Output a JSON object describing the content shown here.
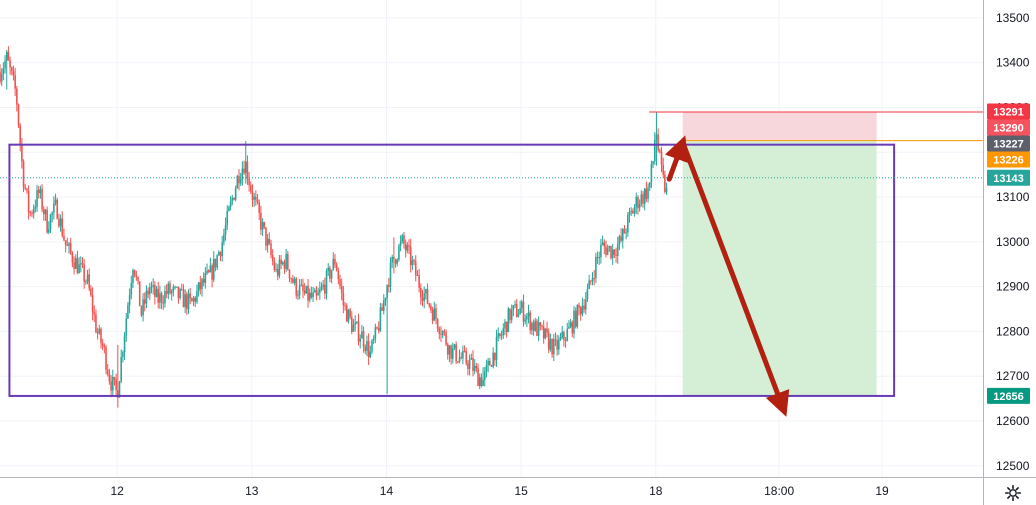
{
  "chart_data": {
    "type": "candlestick",
    "title": "",
    "xlabel": "",
    "ylabel": "",
    "ylim": [
      12475,
      13540
    ],
    "y_ticks": [
      12500,
      12600,
      12700,
      12800,
      12900,
      13000,
      13100,
      13200,
      13300,
      13400,
      13500
    ],
    "x_ticks": [
      {
        "label": "12",
        "t": 12
      },
      {
        "label": "13",
        "t": 13
      },
      {
        "label": "14",
        "t": 14
      },
      {
        "label": "15",
        "t": 15
      },
      {
        "label": "18",
        "t": 16
      },
      {
        "label": "18:00",
        "t": 16.916
      },
      {
        "label": "19",
        "t": 17.68
      }
    ],
    "x_range": [
      11.13,
      18.43
    ],
    "grid": true,
    "current_price": 13143,
    "price_badges": [
      {
        "value": 13291,
        "label": "13291",
        "color": "#f23645"
      },
      {
        "value": 13290,
        "label": "13290",
        "color": "#f7525f"
      },
      {
        "value": 13227,
        "label": "13227",
        "color": "#5d606b"
      },
      {
        "value": 13226,
        "label": "13226",
        "color": "#ff9800"
      },
      {
        "value": 13143,
        "label": "13143",
        "color": "#26a69a"
      },
      {
        "value": 12656,
        "label": "12656",
        "color": "#089981"
      }
    ],
    "price_path": [
      [
        11.13,
        13380
      ],
      [
        11.18,
        13410
      ],
      [
        11.25,
        13330
      ],
      [
        11.3,
        13150
      ],
      [
        11.35,
        13060
      ],
      [
        11.42,
        13110
      ],
      [
        11.48,
        13040
      ],
      [
        11.55,
        13080
      ],
      [
        11.62,
        12990
      ],
      [
        11.7,
        12950
      ],
      [
        11.78,
        12910
      ],
      [
        11.85,
        12800
      ],
      [
        11.9,
        12760
      ],
      [
        11.95,
        12690
      ],
      [
        12.0,
        12660
      ],
      [
        12.05,
        12790
      ],
      [
        12.12,
        12960
      ],
      [
        12.18,
        12840
      ],
      [
        12.24,
        12900
      ],
      [
        12.3,
        12870
      ],
      [
        12.38,
        12890
      ],
      [
        12.45,
        12880
      ],
      [
        12.5,
        12870
      ],
      [
        12.55,
        12860
      ],
      [
        12.62,
        12900
      ],
      [
        12.7,
        12930
      ],
      [
        12.78,
        13000
      ],
      [
        12.85,
        13090
      ],
      [
        12.9,
        13150
      ],
      [
        12.95,
        13180
      ],
      [
        13.0,
        13110
      ],
      [
        13.05,
        13060
      ],
      [
        13.12,
        12990
      ],
      [
        13.18,
        12930
      ],
      [
        13.25,
        12960
      ],
      [
        13.32,
        12900
      ],
      [
        13.4,
        12880
      ],
      [
        13.48,
        12870
      ],
      [
        13.55,
        12910
      ],
      [
        13.62,
        12960
      ],
      [
        13.68,
        12860
      ],
      [
        13.75,
        12810
      ],
      [
        13.82,
        12790
      ],
      [
        13.88,
        12750
      ],
      [
        13.93,
        12800
      ],
      [
        13.97,
        12850
      ],
      [
        14.0,
        12900
      ],
      [
        14.05,
        12960
      ],
      [
        14.12,
        13000
      ],
      [
        14.18,
        12960
      ],
      [
        14.25,
        12900
      ],
      [
        14.32,
        12860
      ],
      [
        14.4,
        12810
      ],
      [
        14.47,
        12760
      ],
      [
        14.55,
        12740
      ],
      [
        14.62,
        12730
      ],
      [
        14.68,
        12700
      ],
      [
        14.72,
        12690
      ],
      [
        14.78,
        12740
      ],
      [
        14.85,
        12790
      ],
      [
        14.92,
        12840
      ],
      [
        15.0,
        12850
      ],
      [
        15.05,
        12830
      ],
      [
        15.1,
        12810
      ],
      [
        15.17,
        12790
      ],
      [
        15.25,
        12760
      ],
      [
        15.3,
        12780
      ],
      [
        15.35,
        12800
      ],
      [
        15.42,
        12840
      ],
      [
        15.5,
        12890
      ],
      [
        15.55,
        12950
      ],
      [
        15.6,
        12990
      ],
      [
        15.68,
        12980
      ],
      [
        15.74,
        13000
      ],
      [
        15.8,
        13050
      ],
      [
        15.86,
        13090
      ],
      [
        15.9,
        13100
      ],
      [
        15.95,
        13120
      ],
      [
        15.98,
        13180
      ],
      [
        16.0,
        13260
      ],
      [
        16.02,
        13200
      ],
      [
        16.05,
        13140
      ],
      [
        16.08,
        13110
      ]
    ],
    "spikes": [
      {
        "t": 11.18,
        "low": 13340,
        "high": 13415
      },
      {
        "t": 12.0,
        "low": 12630,
        "high": 12770
      },
      {
        "t": 12.95,
        "low": 13130,
        "high": 13225
      },
      {
        "t": 14.0,
        "low": 12660,
        "high": 12790
      },
      {
        "t": 14.05,
        "low": 12930,
        "high": 13010
      },
      {
        "t": 14.72,
        "low": 12680,
        "high": 12720
      },
      {
        "t": 16.0,
        "low": 13170,
        "high": 13290
      }
    ],
    "annotations": {
      "range_box": {
        "t_start": 11.2,
        "t_end": 17.77,
        "top": 13217,
        "bottom": 12656,
        "color": "#673ab7"
      },
      "position": {
        "type": "short",
        "t_start": 16.2,
        "t_end": 17.64,
        "entry": 13226,
        "stop": 13290,
        "target": 12656,
        "stop_color": "#f8d7dc",
        "target_color": "#d5efd6"
      },
      "stop_line": {
        "t_start": 15.95,
        "t_end": 18.43,
        "value": 13290
      },
      "arrows": [
        {
          "from": [
            16.1,
            13140
          ],
          "to": [
            16.2,
            13222
          ]
        },
        {
          "from": [
            16.2,
            13222
          ],
          "to": [
            16.95,
            12625
          ]
        }
      ]
    }
  },
  "colors": {
    "up": "#26a69a",
    "down": "#ef5350",
    "grid": "#f0f3fa",
    "axis_text": "#131722",
    "arrow": "#b22010",
    "current_line": "#26a69a",
    "entry_line": "#ff9800",
    "stop_line": "#f23645"
  },
  "icons": {
    "settings": "gear-icon"
  }
}
